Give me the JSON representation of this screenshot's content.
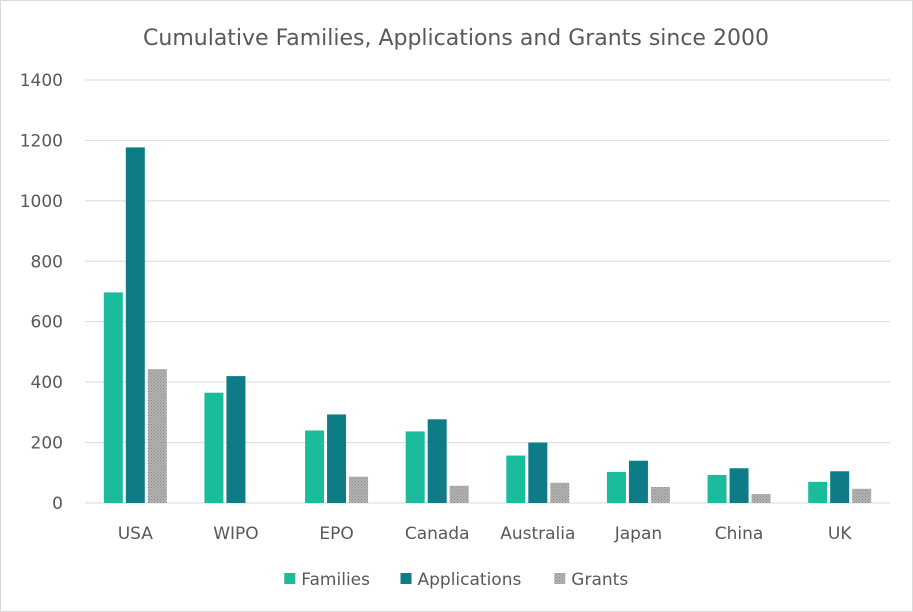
{
  "chart_data": {
    "type": "bar",
    "title": "Cumulative Families, Applications and Grants since 2000",
    "xlabel": "",
    "ylabel": "",
    "categories": [
      "USA",
      "WIPO",
      "EPO",
      "Canada",
      "Australia",
      "Japan",
      "China",
      "UK"
    ],
    "series": [
      {
        "name": "Families",
        "color": "#1abc9c",
        "values": [
          697,
          365,
          240,
          237,
          157,
          103,
          93,
          70
        ]
      },
      {
        "name": "Applications",
        "color": "#0e7c86",
        "values": [
          1177,
          420,
          293,
          277,
          200,
          140,
          115,
          105
        ]
      },
      {
        "name": "Grants",
        "color": "#a6a6a6",
        "pattern": "dotted",
        "values": [
          443,
          0,
          87,
          57,
          67,
          53,
          30,
          47
        ]
      }
    ],
    "ylim": [
      0,
      1400
    ],
    "yticks": [
      "0",
      "200",
      "400",
      "600",
      "800",
      "1000",
      "1200",
      "1400"
    ],
    "grid": true,
    "legend_position": "bottom"
  }
}
